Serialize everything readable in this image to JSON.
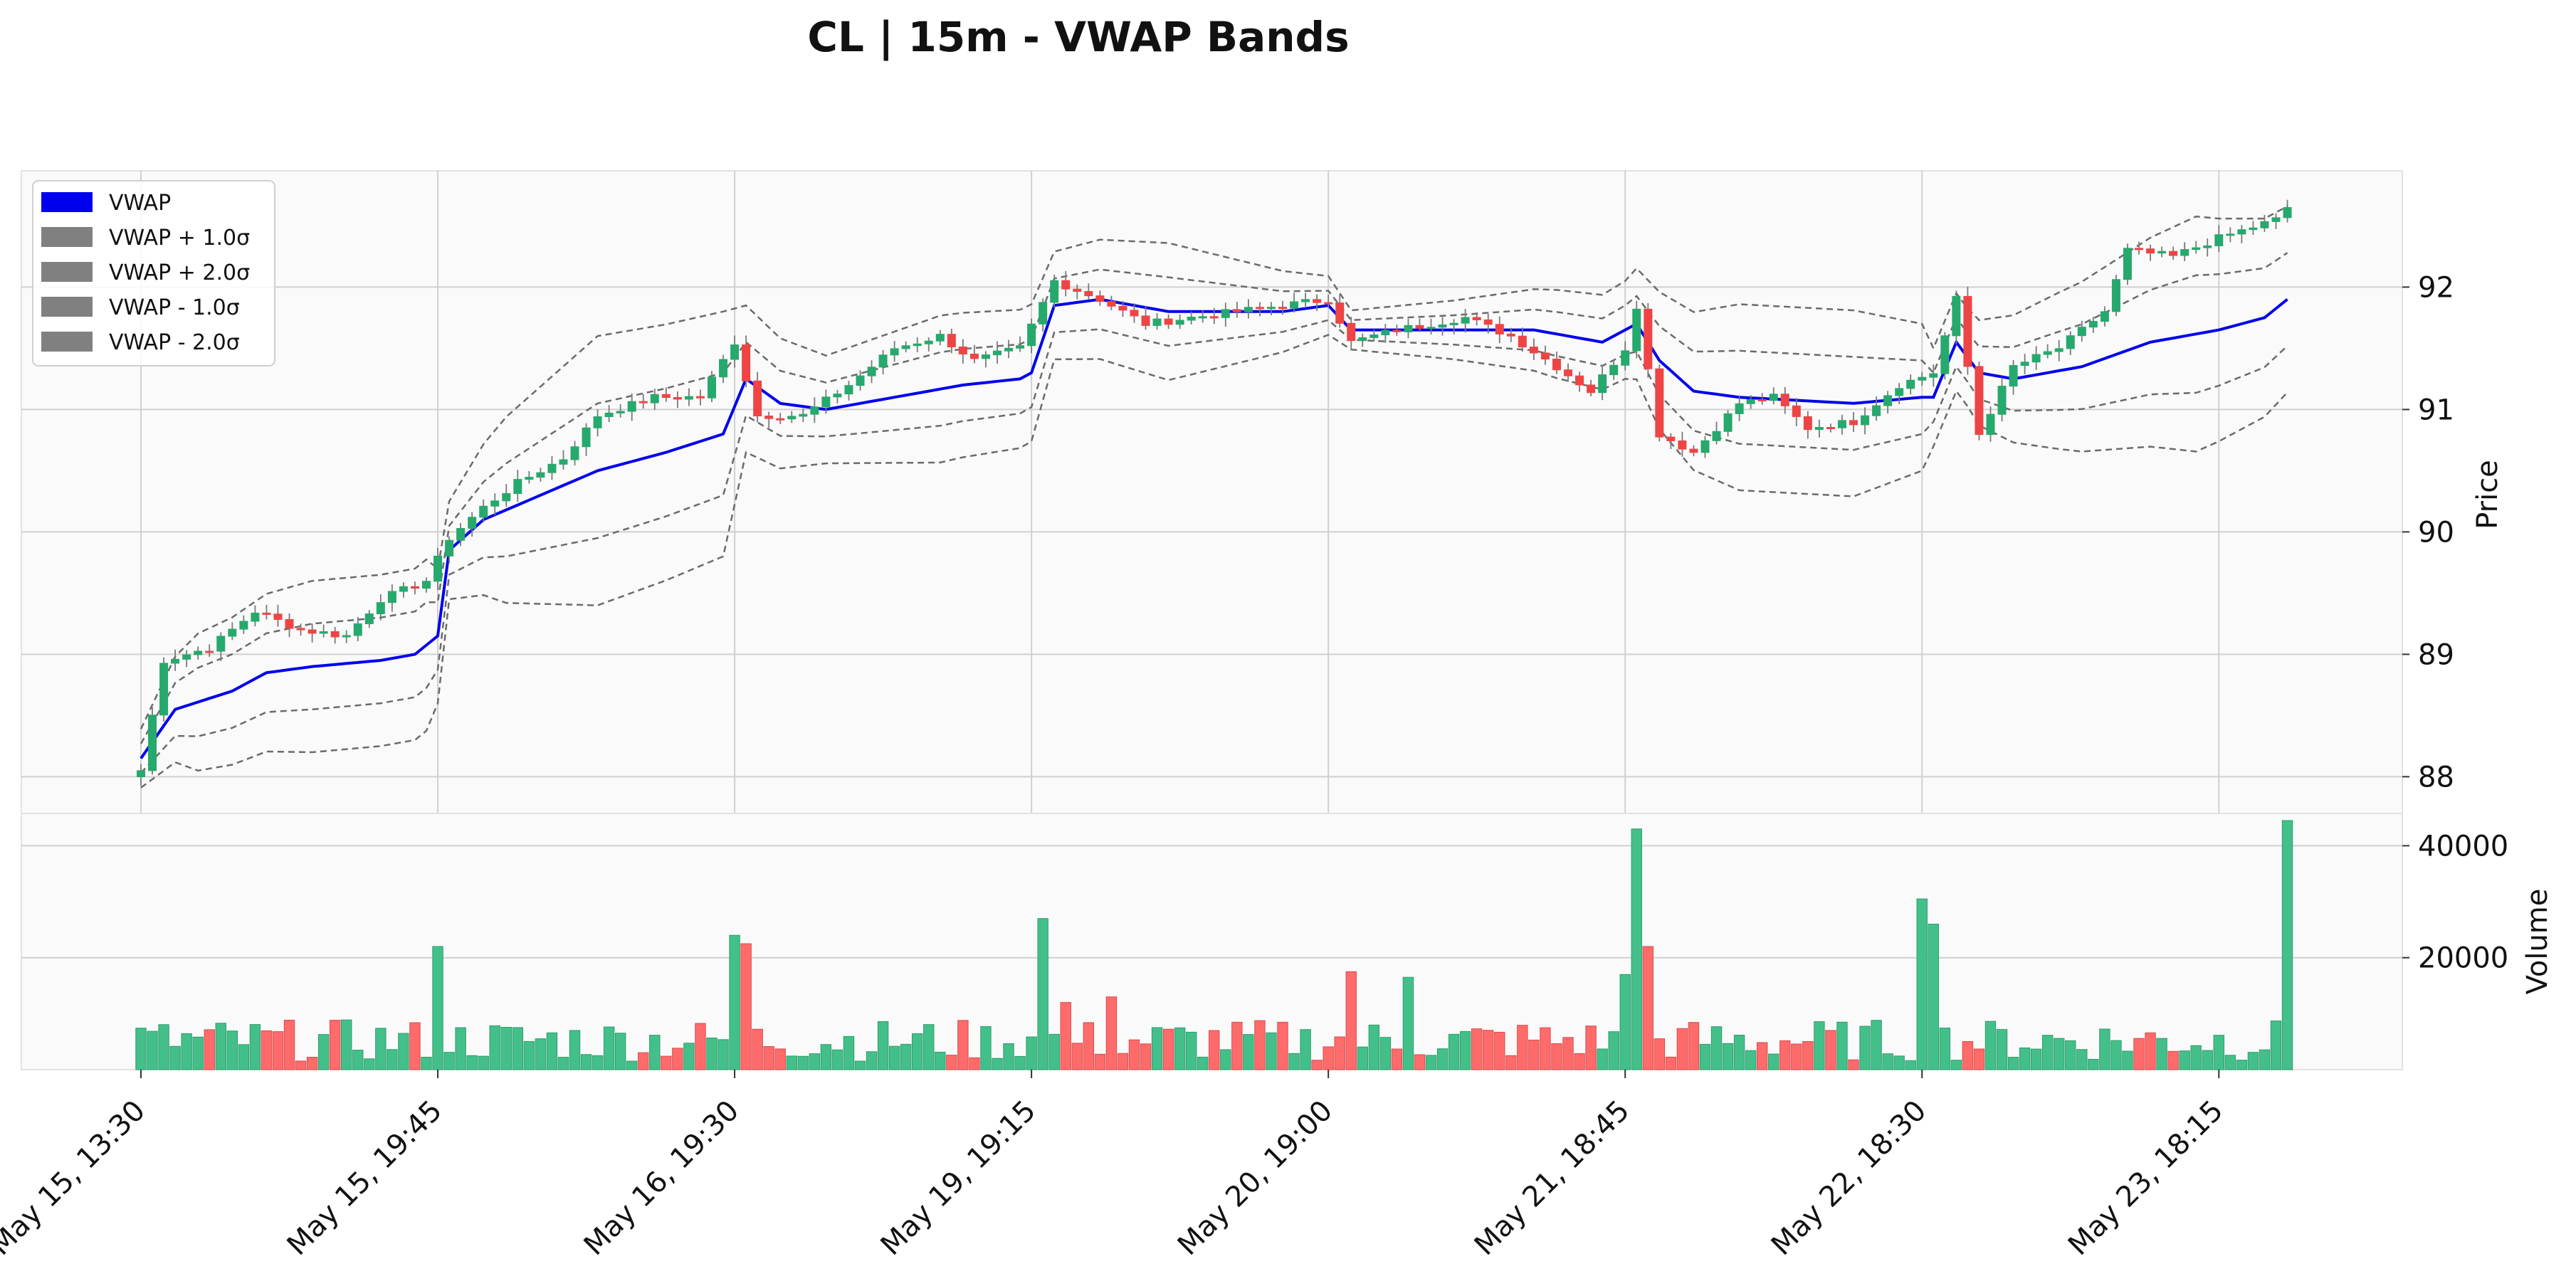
{
  "chart_data": {
    "type": "candlestick",
    "title": "CL | 15m - VWAP Bands",
    "price_axis": {
      "label": "Price",
      "ylim": [
        87.7,
        92.95
      ],
      "ticks": [
        88,
        89,
        90,
        91,
        92
      ]
    },
    "volume_axis": {
      "label": "Volume",
      "ylim": [
        0,
        44500
      ],
      "ticks": [
        20000,
        40000
      ]
    },
    "x_ticks": [
      {
        "bar": 0,
        "label": "May 15, 13:30"
      },
      {
        "bar": 26,
        "label": "May 15, 19:45"
      },
      {
        "bar": 52,
        "label": "May 16, 19:30"
      },
      {
        "bar": 78,
        "label": "May 19, 19:15"
      },
      {
        "bar": 104,
        "label": "May 20, 19:00"
      },
      {
        "bar": 130,
        "label": "May 21, 18:45"
      },
      {
        "bar": 156,
        "label": "May 22, 18:30"
      },
      {
        "bar": 182,
        "label": "May 23, 18:15"
      }
    ],
    "bar_count": 189,
    "grid": true,
    "legend": {
      "placement": "top-left",
      "entries": [
        {
          "label": "VWAP",
          "color": "#0000ee"
        },
        {
          "label": "VWAP + 1.0σ",
          "color": "#808080"
        },
        {
          "label": "VWAP + 2.0σ",
          "color": "#808080"
        },
        {
          "label": "VWAP - 1.0σ",
          "color": "#808080"
        },
        {
          "label": "VWAP - 2.0σ",
          "color": "#808080"
        }
      ]
    },
    "colors": {
      "up": "#26a96c",
      "down": "#ef4444",
      "volume_up": "#43c08a",
      "volume_down": "#ff6b6b",
      "vwap": "#0000ee",
      "bands": "#6b6b6b"
    },
    "close_path": [
      [
        0,
        88.05
      ],
      [
        2,
        88.95
      ],
      [
        6,
        89.05
      ],
      [
        10,
        89.35
      ],
      [
        14,
        89.2
      ],
      [
        18,
        89.15
      ],
      [
        21,
        89.45
      ],
      [
        25,
        89.6
      ],
      [
        27,
        89.95
      ],
      [
        30,
        90.2
      ],
      [
        33,
        90.4
      ],
      [
        37,
        90.6
      ],
      [
        40,
        90.95
      ],
      [
        45,
        91.1
      ],
      [
        49,
        91.1
      ],
      [
        52,
        91.55
      ],
      [
        54,
        90.95
      ],
      [
        58,
        90.95
      ],
      [
        62,
        91.2
      ],
      [
        66,
        91.5
      ],
      [
        70,
        91.6
      ],
      [
        73,
        91.4
      ],
      [
        77,
        91.5
      ],
      [
        80,
        92.05
      ],
      [
        84,
        91.9
      ],
      [
        88,
        91.7
      ],
      [
        92,
        91.75
      ],
      [
        96,
        91.8
      ],
      [
        100,
        91.85
      ],
      [
        104,
        91.9
      ],
      [
        106,
        91.55
      ],
      [
        110,
        91.65
      ],
      [
        116,
        91.75
      ],
      [
        120,
        91.6
      ],
      [
        124,
        91.35
      ],
      [
        127,
        91.15
      ],
      [
        130,
        91.5
      ],
      [
        131,
        91.85
      ],
      [
        133,
        90.8
      ],
      [
        136,
        90.65
      ],
      [
        140,
        91.05
      ],
      [
        143,
        91.1
      ],
      [
        146,
        90.85
      ],
      [
        150,
        90.9
      ],
      [
        154,
        91.2
      ],
      [
        157,
        91.3
      ],
      [
        159,
        91.9
      ],
      [
        161,
        90.8
      ],
      [
        164,
        91.35
      ],
      [
        168,
        91.5
      ],
      [
        172,
        91.8
      ],
      [
        174,
        92.3
      ],
      [
        178,
        92.25
      ],
      [
        182,
        92.4
      ],
      [
        187,
        92.55
      ],
      [
        188,
        92.65
      ]
    ],
    "vwap_path": [
      [
        0,
        88.15
      ],
      [
        3,
        88.55
      ],
      [
        8,
        88.7
      ],
      [
        11,
        88.85
      ],
      [
        15,
        88.9
      ],
      [
        21,
        88.95
      ],
      [
        24,
        89.0
      ],
      [
        26,
        89.15
      ],
      [
        27,
        89.85
      ],
      [
        30,
        90.1
      ],
      [
        35,
        90.3
      ],
      [
        40,
        90.5
      ],
      [
        46,
        90.65
      ],
      [
        51,
        90.8
      ],
      [
        53,
        91.25
      ],
      [
        56,
        91.05
      ],
      [
        60,
        91.0
      ],
      [
        66,
        91.1
      ],
      [
        72,
        91.2
      ],
      [
        77,
        91.25
      ],
      [
        78,
        91.3
      ],
      [
        80,
        91.85
      ],
      [
        84,
        91.9
      ],
      [
        90,
        91.8
      ],
      [
        100,
        91.8
      ],
      [
        104,
        91.85
      ],
      [
        106,
        91.65
      ],
      [
        114,
        91.65
      ],
      [
        122,
        91.65
      ],
      [
        128,
        91.55
      ],
      [
        131,
        91.7
      ],
      [
        133,
        91.4
      ],
      [
        136,
        91.15
      ],
      [
        140,
        91.1
      ],
      [
        150,
        91.05
      ],
      [
        156,
        91.1
      ],
      [
        157,
        91.1
      ],
      [
        159,
        91.55
      ],
      [
        161,
        91.3
      ],
      [
        164,
        91.25
      ],
      [
        170,
        91.35
      ],
      [
        176,
        91.55
      ],
      [
        182,
        91.65
      ],
      [
        186,
        91.75
      ],
      [
        188,
        91.9
      ]
    ],
    "band_widths": [
      [
        0,
        0.12
      ],
      [
        5,
        0.28
      ],
      [
        15,
        0.35
      ],
      [
        25,
        0.35
      ],
      [
        27,
        0.2
      ],
      [
        32,
        0.38
      ],
      [
        40,
        0.55
      ],
      [
        51,
        0.5
      ],
      [
        53,
        0.3
      ],
      [
        60,
        0.22
      ],
      [
        70,
        0.3
      ],
      [
        78,
        0.28
      ],
      [
        80,
        0.22
      ],
      [
        90,
        0.28
      ],
      [
        104,
        0.12
      ],
      [
        106,
        0.08
      ],
      [
        115,
        0.12
      ],
      [
        124,
        0.18
      ],
      [
        130,
        0.2
      ],
      [
        133,
        0.28
      ],
      [
        140,
        0.38
      ],
      [
        150,
        0.38
      ],
      [
        156,
        0.3
      ],
      [
        157,
        0.2
      ],
      [
        160,
        0.2
      ],
      [
        168,
        0.32
      ],
      [
        180,
        0.48
      ],
      [
        188,
        0.38
      ]
    ],
    "volume_spikes": [
      [
        26,
        22000
      ],
      [
        52,
        24000
      ],
      [
        53,
        22500
      ],
      [
        79,
        27000
      ],
      [
        81,
        12000
      ],
      [
        85,
        13000
      ],
      [
        106,
        17500
      ],
      [
        111,
        16500
      ],
      [
        130,
        17000
      ],
      [
        131,
        43000
      ],
      [
        132,
        22000
      ],
      [
        156,
        30500
      ],
      [
        157,
        26000
      ],
      [
        188,
        44500
      ]
    ]
  }
}
